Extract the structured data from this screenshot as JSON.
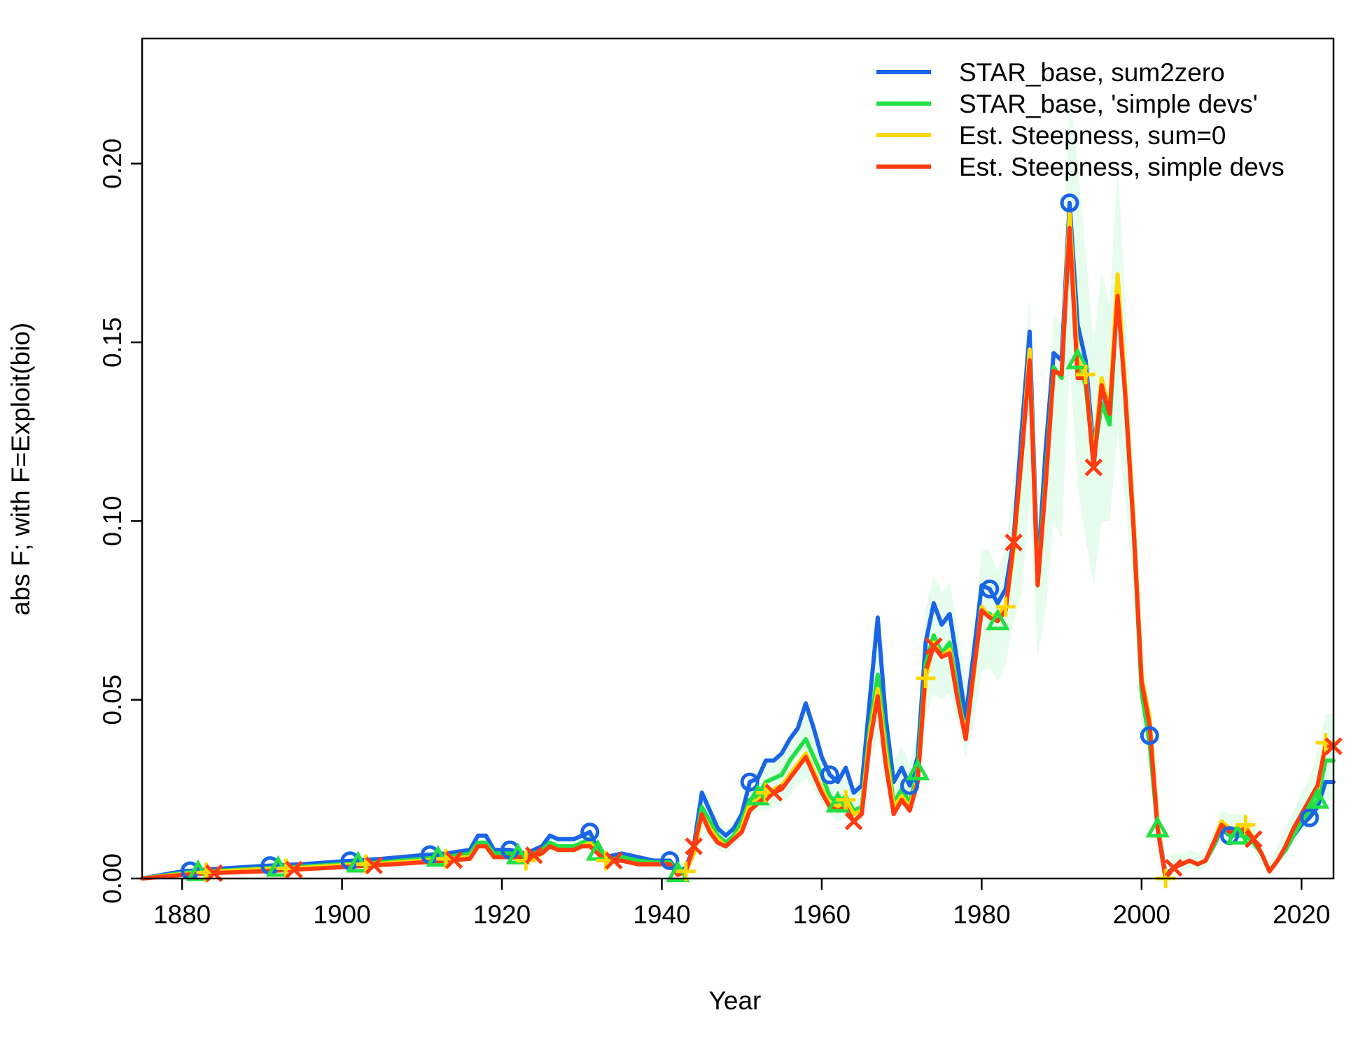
{
  "chart_data": {
    "type": "line",
    "title": "",
    "xlabel": "Year",
    "ylabel": "abs F; with F=Exploit(bio)",
    "xlim": [
      1875,
      2024
    ],
    "ylim": [
      0,
      0.235
    ],
    "xticks": [
      1880,
      1900,
      1920,
      1940,
      1960,
      1980,
      2000,
      2020
    ],
    "yticks": [
      0.0,
      0.05,
      0.1,
      0.15,
      0.2
    ],
    "ytick_labels": [
      "0.00",
      "0.05",
      "0.10",
      "0.15",
      "0.20"
    ],
    "grid": false,
    "legend_position": "top-right",
    "x": [
      1875,
      1880,
      1885,
      1890,
      1895,
      1900,
      1905,
      1910,
      1913,
      1916,
      1917,
      1918,
      1919,
      1921,
      1923,
      1925,
      1926,
      1927,
      1929,
      1930,
      1931,
      1932,
      1933,
      1935,
      1937,
      1939,
      1941,
      1942,
      1943,
      1944,
      1945,
      1946,
      1947,
      1948,
      1949,
      1950,
      1951,
      1952,
      1953,
      1954,
      1955,
      1956,
      1957,
      1958,
      1959,
      1960,
      1961,
      1962,
      1963,
      1964,
      1965,
      1966,
      1967,
      1968,
      1969,
      1970,
      1971,
      1972,
      1973,
      1974,
      1975,
      1976,
      1977,
      1978,
      1979,
      1980,
      1981,
      1982,
      1983,
      1984,
      1985,
      1986,
      1987,
      1988,
      1989,
      1990,
      1991,
      1992,
      1993,
      1994,
      1995,
      1996,
      1997,
      1998,
      1999,
      2000,
      2001,
      2002,
      2003,
      2004,
      2005,
      2006,
      2007,
      2008,
      2009,
      2010,
      2011,
      2012,
      2013,
      2014,
      2015,
      2016,
      2017,
      2018,
      2019,
      2020,
      2021,
      2022,
      2023,
      2024
    ],
    "uncertainty_band": {
      "upper": [
        0.0001,
        0.0012,
        0.0022,
        0.003,
        0.0038,
        0.0046,
        0.0054,
        0.0064,
        0.0068,
        0.008,
        0.0115,
        0.0115,
        0.0085,
        0.0085,
        0.0075,
        0.0095,
        0.012,
        0.011,
        0.011,
        0.012,
        0.013,
        0.009,
        0.007,
        0.0075,
        0.006,
        0.0055,
        0.0052,
        0.004,
        0.005,
        0.012,
        0.026,
        0.022,
        0.017,
        0.014,
        0.016,
        0.02,
        0.028,
        0.03,
        0.032,
        0.034,
        0.036,
        0.039,
        0.043,
        0.047,
        0.042,
        0.036,
        0.031,
        0.027,
        0.028,
        0.026,
        0.027,
        0.055,
        0.067,
        0.05,
        0.033,
        0.037,
        0.032,
        0.043,
        0.075,
        0.085,
        0.08,
        0.083,
        0.07,
        0.055,
        0.068,
        0.092,
        0.092,
        0.086,
        0.092,
        0.112,
        0.134,
        0.163,
        0.1,
        0.125,
        0.158,
        0.155,
        0.22,
        0.2,
        0.175,
        0.15,
        0.17,
        0.16,
        0.2,
        0.16,
        0.115,
        0.07,
        0.046,
        0.023,
        0.005,
        0.007,
        0.007,
        0.008,
        0.007,
        0.008,
        0.013,
        0.019,
        0.018,
        0.018,
        0.018,
        0.015,
        0.01,
        0.004,
        0.009,
        0.014,
        0.019,
        0.024,
        0.028,
        0.035,
        0.046,
        0.046
      ],
      "lower": [
        0,
        0.0008,
        0.0014,
        0.002,
        0.0025,
        0.003,
        0.0035,
        0.004,
        0.004,
        0.005,
        0.0075,
        0.0075,
        0.005,
        0.005,
        0.0045,
        0.006,
        0.008,
        0.007,
        0.007,
        0.008,
        0.009,
        0.006,
        0.004,
        0.0045,
        0.0035,
        0.003,
        0.003,
        0.0015,
        0.0025,
        0.006,
        0.013,
        0.011,
        0.008,
        0.007,
        0.009,
        0.012,
        0.017,
        0.019,
        0.019,
        0.02,
        0.021,
        0.023,
        0.026,
        0.028,
        0.025,
        0.021,
        0.018,
        0.016,
        0.017,
        0.015,
        0.016,
        0.032,
        0.04,
        0.03,
        0.018,
        0.021,
        0.018,
        0.024,
        0.045,
        0.052,
        0.05,
        0.052,
        0.044,
        0.034,
        0.043,
        0.058,
        0.059,
        0.055,
        0.06,
        0.072,
        0.08,
        0.105,
        0.062,
        0.075,
        0.1,
        0.095,
        0.145,
        0.11,
        0.095,
        0.082,
        0.1,
        0.1,
        0.125,
        0.105,
        0.08,
        0.045,
        0.03,
        0.01,
        0.0,
        0.002,
        0.002,
        0.003,
        0.002,
        0.003,
        0.008,
        0.011,
        0.01,
        0.011,
        0.01,
        0.008,
        0.004,
        0.001,
        0.004,
        0.007,
        0.01,
        0.013,
        0.015,
        0.018,
        0.022,
        0.022
      ]
    },
    "series": [
      {
        "name": "STAR_base, sum2zero",
        "color": "#1a64e6",
        "marker": "circle",
        "marker_years": [
          1881,
          1891,
          1901,
          1911,
          1921,
          1931,
          1941,
          1951,
          1961,
          1971,
          1981,
          1991,
          2001,
          2011,
          2021
        ],
        "values": [
          0.0,
          0.002,
          0.0028,
          0.0035,
          0.004,
          0.0048,
          0.0055,
          0.0065,
          0.007,
          0.008,
          0.012,
          0.012,
          0.008,
          0.008,
          0.007,
          0.009,
          0.012,
          0.011,
          0.011,
          0.012,
          0.013,
          0.008,
          0.006,
          0.007,
          0.006,
          0.005,
          0.005,
          0.002,
          0.003,
          0.009,
          0.024,
          0.019,
          0.014,
          0.012,
          0.014,
          0.018,
          0.027,
          0.028,
          0.033,
          0.033,
          0.035,
          0.039,
          0.042,
          0.049,
          0.042,
          0.034,
          0.029,
          0.027,
          0.031,
          0.024,
          0.026,
          0.05,
          0.073,
          0.045,
          0.027,
          0.031,
          0.026,
          0.034,
          0.066,
          0.077,
          0.071,
          0.074,
          0.06,
          0.045,
          0.063,
          0.082,
          0.081,
          0.077,
          0.081,
          0.095,
          0.125,
          0.153,
          0.085,
          0.12,
          0.147,
          0.145,
          0.189,
          0.155,
          0.145,
          0.12,
          0.137,
          0.13,
          0.167,
          0.135,
          0.1,
          0.055,
          0.04,
          0.015,
          0.001,
          0.003,
          0.004,
          0.005,
          0.004,
          0.005,
          0.009,
          0.014,
          0.012,
          0.012,
          0.013,
          0.011,
          0.007,
          0.002,
          0.005,
          0.008,
          0.012,
          0.015,
          0.017,
          0.02,
          0.027,
          0.027
        ]
      },
      {
        "name": "STAR_base, 'simple devs'",
        "color": "#22e043",
        "marker": "triangle",
        "marker_years": [
          1882,
          1892,
          1902,
          1912,
          1922,
          1932,
          1942,
          1952,
          1962,
          1972,
          1982,
          1992,
          2002,
          2012,
          2022
        ],
        "values": [
          0.0,
          0.0015,
          0.0022,
          0.0028,
          0.0033,
          0.004,
          0.0045,
          0.0055,
          0.006,
          0.007,
          0.01,
          0.01,
          0.007,
          0.007,
          0.006,
          0.008,
          0.01,
          0.009,
          0.009,
          0.01,
          0.011,
          0.0075,
          0.005,
          0.006,
          0.005,
          0.0045,
          0.0045,
          0.0015,
          0.0025,
          0.008,
          0.02,
          0.016,
          0.012,
          0.01,
          0.012,
          0.016,
          0.022,
          0.023,
          0.027,
          0.028,
          0.029,
          0.033,
          0.036,
          0.039,
          0.034,
          0.029,
          0.023,
          0.021,
          0.023,
          0.019,
          0.02,
          0.042,
          0.057,
          0.038,
          0.021,
          0.025,
          0.021,
          0.03,
          0.06,
          0.068,
          0.063,
          0.066,
          0.052,
          0.04,
          0.058,
          0.075,
          0.074,
          0.072,
          0.076,
          0.092,
          0.118,
          0.147,
          0.083,
          0.112,
          0.143,
          0.14,
          0.185,
          0.145,
          0.138,
          0.117,
          0.133,
          0.127,
          0.165,
          0.133,
          0.098,
          0.052,
          0.038,
          0.014,
          0.0,
          0.003,
          0.004,
          0.005,
          0.004,
          0.005,
          0.009,
          0.015,
          0.012,
          0.012,
          0.012,
          0.01,
          0.007,
          0.002,
          0.005,
          0.008,
          0.012,
          0.016,
          0.019,
          0.022,
          0.033,
          0.033
        ]
      },
      {
        "name": "Est. Steepness, sum=0",
        "color": "#ffd700",
        "marker": "plus",
        "marker_years": [
          1883,
          1893,
          1903,
          1913,
          1923,
          1933,
          1943,
          1953,
          1963,
          1973,
          1983,
          1993,
          2003,
          2013,
          2023
        ],
        "values": [
          0.0,
          0.0012,
          0.002,
          0.0026,
          0.003,
          0.0037,
          0.0042,
          0.005,
          0.0055,
          0.006,
          0.009,
          0.009,
          0.006,
          0.006,
          0.005,
          0.007,
          0.009,
          0.008,
          0.008,
          0.009,
          0.01,
          0.007,
          0.005,
          0.005,
          0.004,
          0.004,
          0.004,
          0.001,
          0.002,
          0.007,
          0.018,
          0.014,
          0.011,
          0.009,
          0.011,
          0.014,
          0.021,
          0.022,
          0.024,
          0.025,
          0.026,
          0.029,
          0.032,
          0.035,
          0.03,
          0.025,
          0.021,
          0.02,
          0.022,
          0.018,
          0.019,
          0.04,
          0.053,
          0.035,
          0.02,
          0.023,
          0.02,
          0.028,
          0.056,
          0.066,
          0.062,
          0.064,
          0.05,
          0.04,
          0.057,
          0.076,
          0.073,
          0.074,
          0.076,
          0.092,
          0.118,
          0.148,
          0.082,
          0.11,
          0.142,
          0.141,
          0.186,
          0.145,
          0.141,
          0.117,
          0.14,
          0.131,
          0.169,
          0.136,
          0.1,
          0.056,
          0.045,
          0.015,
          0.0,
          0.003,
          0.004,
          0.005,
          0.004,
          0.005,
          0.01,
          0.016,
          0.014,
          0.014,
          0.015,
          0.011,
          0.007,
          0.002,
          0.005,
          0.009,
          0.014,
          0.018,
          0.021,
          0.025,
          0.038,
          0.038
        ]
      },
      {
        "name": "Est. Steepness, simple devs",
        "color": "#ff3b10",
        "marker": "cross",
        "marker_years": [
          1884,
          1894,
          1904,
          1914,
          1924,
          1934,
          1944,
          1954,
          1964,
          1974,
          1984,
          1994,
          2004,
          2014,
          2024
        ],
        "values": [
          0.0,
          0.001,
          0.0016,
          0.002,
          0.0026,
          0.0032,
          0.0038,
          0.0045,
          0.005,
          0.0055,
          0.009,
          0.009,
          0.006,
          0.006,
          0.006,
          0.007,
          0.009,
          0.008,
          0.008,
          0.009,
          0.009,
          0.007,
          0.005,
          0.005,
          0.004,
          0.004,
          0.004,
          0.001,
          0.002,
          0.009,
          0.018,
          0.013,
          0.01,
          0.009,
          0.011,
          0.013,
          0.019,
          0.021,
          0.023,
          0.024,
          0.025,
          0.028,
          0.031,
          0.034,
          0.029,
          0.024,
          0.02,
          0.019,
          0.02,
          0.016,
          0.018,
          0.038,
          0.051,
          0.032,
          0.018,
          0.022,
          0.019,
          0.027,
          0.058,
          0.065,
          0.062,
          0.063,
          0.05,
          0.039,
          0.058,
          0.075,
          0.073,
          0.072,
          0.075,
          0.094,
          0.118,
          0.145,
          0.082,
          0.11,
          0.142,
          0.141,
          0.182,
          0.14,
          0.14,
          0.115,
          0.138,
          0.13,
          0.163,
          0.134,
          0.098,
          0.055,
          0.043,
          0.014,
          0.0,
          0.003,
          0.004,
          0.005,
          0.004,
          0.005,
          0.01,
          0.015,
          0.013,
          0.013,
          0.014,
          0.011,
          0.007,
          0.002,
          0.005,
          0.009,
          0.014,
          0.018,
          0.022,
          0.026,
          0.037,
          0.037
        ]
      }
    ]
  }
}
